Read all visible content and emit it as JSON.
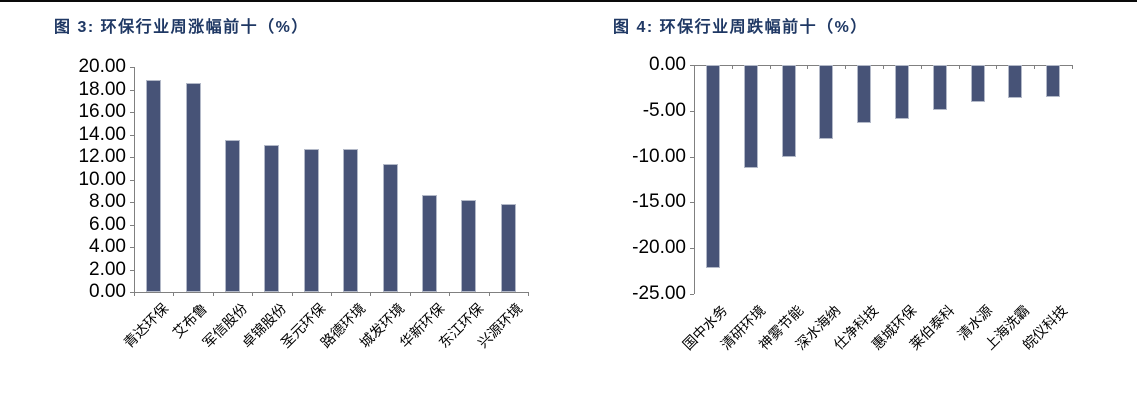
{
  "styles": {
    "bar_fill": "#475377",
    "bar_edge": "#b3b9c8",
    "axis_line": "#808080",
    "title_color": "#1f3864",
    "panel_bg": "#ffffff",
    "top_rule": "#0a0a0a",
    "text_color": "#000000"
  },
  "chart_data": [
    {
      "type": "bar",
      "title": "图 3: 环保行业周涨幅前十（%）",
      "categories": [
        "青达环保",
        "艾布鲁",
        "军信股份",
        "卓锦股份",
        "圣元环保",
        "路德环境",
        "城发环境",
        "华新环保",
        "东江环保",
        "兴源环境"
      ],
      "values": [
        18.85,
        18.6,
        13.5,
        13.05,
        12.7,
        12.68,
        11.4,
        8.6,
        8.15,
        7.85
      ],
      "xlabel": "",
      "ylabel": "",
      "ylim": [
        0,
        20
      ],
      "ytick_step": 2,
      "ytick_format": "two-decimals",
      "grid": false,
      "legend": "none",
      "bar_color": "#475377",
      "category_label_rotation_deg": -45
    },
    {
      "type": "bar",
      "title": "图 4: 环保行业周跌幅前十（%）",
      "categories": [
        "国中水务",
        "清研环境",
        "神雾节能",
        "深水海纳",
        "仕净科技",
        "惠城环保",
        "莱伯泰科",
        "清水源",
        "上海洗霸",
        "皖仪科技"
      ],
      "values": [
        -22.2,
        -11.2,
        -10.0,
        -8.1,
        -6.3,
        -5.9,
        -4.9,
        -4.0,
        -3.65,
        -3.45
      ],
      "xlabel": "",
      "ylabel": "",
      "ylim": [
        -25,
        0
      ],
      "ytick_step": 5,
      "ytick_format": "two-decimals",
      "grid": false,
      "legend": "none",
      "bar_color": "#475377",
      "category_label_rotation_deg": -45
    }
  ]
}
